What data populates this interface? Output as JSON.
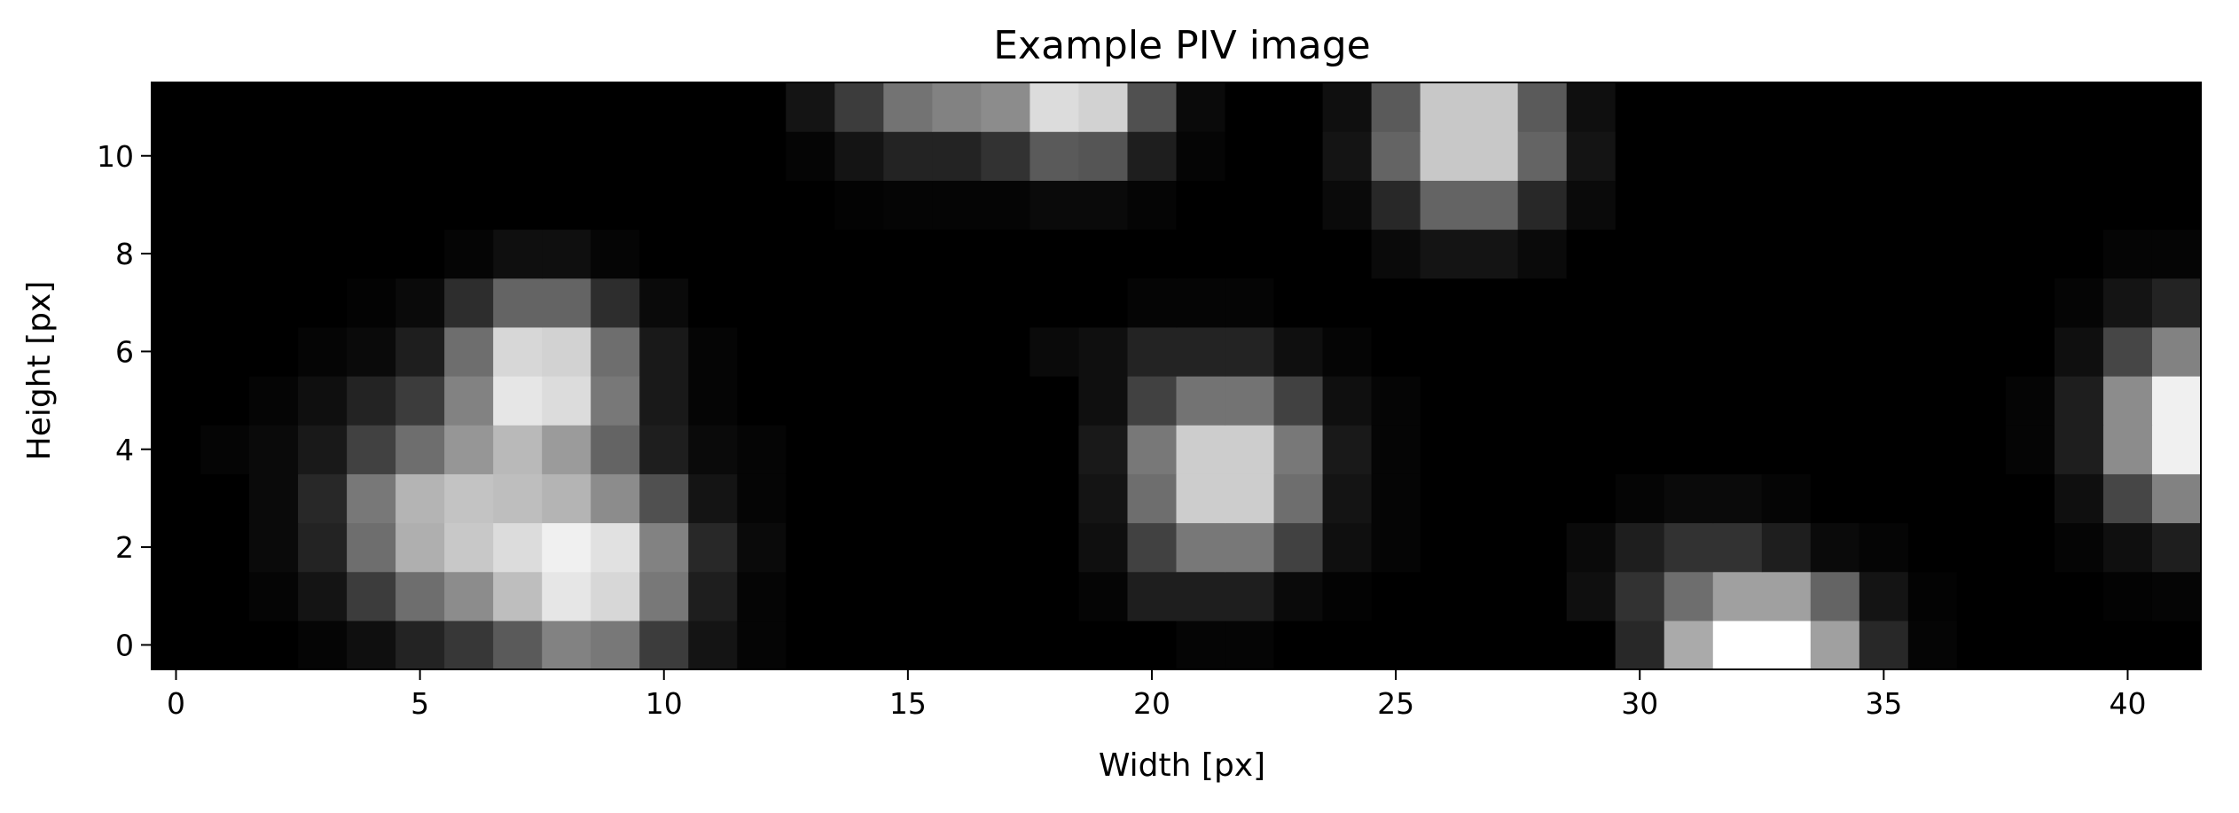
{
  "chart_data": {
    "type": "heatmap",
    "title": "Example PIV image",
    "xlabel": "Width [px]",
    "ylabel": "Height [px]",
    "xlim": [
      -0.5,
      41.5
    ],
    "ylim": [
      -0.5,
      11.5
    ],
    "x_ticks": [
      0,
      5,
      10,
      15,
      20,
      25,
      30,
      35,
      40
    ],
    "y_ticks": [
      0,
      2,
      4,
      6,
      8,
      10
    ],
    "colormap": "gray",
    "origin": "lower",
    "value_range": [
      0,
      255
    ],
    "grid": false,
    "rows_from_y0": [
      [
        0,
        0,
        0,
        5,
        15,
        35,
        55,
        90,
        130,
        120,
        60,
        20,
        5,
        0,
        0,
        0,
        0,
        0,
        0,
        0,
        0,
        5,
        5,
        0,
        0,
        0,
        0,
        0,
        0,
        0,
        40,
        170,
        255,
        255,
        160,
        40,
        5,
        0,
        0,
        0,
        0,
        0
      ],
      [
        0,
        0,
        5,
        20,
        60,
        110,
        140,
        190,
        230,
        215,
        120,
        30,
        5,
        0,
        0,
        0,
        0,
        0,
        0,
        5,
        30,
        30,
        30,
        10,
        3,
        0,
        0,
        0,
        0,
        15,
        50,
        110,
        160,
        160,
        100,
        20,
        3,
        0,
        0,
        0,
        3,
        5
      ],
      [
        0,
        0,
        10,
        35,
        110,
        175,
        200,
        220,
        240,
        225,
        130,
        40,
        10,
        0,
        0,
        0,
        0,
        0,
        0,
        15,
        65,
        120,
        120,
        65,
        15,
        5,
        0,
        0,
        0,
        10,
        30,
        50,
        50,
        30,
        10,
        5,
        0,
        0,
        0,
        5,
        15,
        30
      ],
      [
        0,
        0,
        10,
        40,
        120,
        180,
        195,
        190,
        180,
        140,
        80,
        20,
        5,
        0,
        0,
        0,
        0,
        0,
        0,
        20,
        110,
        205,
        205,
        110,
        20,
        5,
        0,
        0,
        0,
        0,
        5,
        10,
        10,
        5,
        0,
        0,
        0,
        0,
        0,
        15,
        70,
        130
      ],
      [
        0,
        5,
        10,
        25,
        65,
        110,
        150,
        185,
        155,
        100,
        30,
        10,
        5,
        0,
        0,
        0,
        0,
        0,
        0,
        25,
        120,
        205,
        205,
        120,
        25,
        5,
        0,
        0,
        0,
        0,
        0,
        0,
        0,
        0,
        0,
        0,
        0,
        0,
        5,
        30,
        140,
        240
      ],
      [
        0,
        0,
        5,
        15,
        35,
        60,
        130,
        230,
        220,
        120,
        25,
        5,
        0,
        0,
        0,
        0,
        0,
        0,
        0,
        15,
        65,
        115,
        115,
        65,
        15,
        5,
        0,
        0,
        0,
        0,
        0,
        0,
        0,
        0,
        0,
        0,
        0,
        0,
        5,
        30,
        140,
        240
      ],
      [
        0,
        0,
        0,
        5,
        10,
        30,
        110,
        215,
        210,
        110,
        25,
        5,
        0,
        0,
        0,
        0,
        0,
        0,
        10,
        15,
        35,
        35,
        35,
        15,
        5,
        0,
        0,
        0,
        0,
        0,
        0,
        0,
        0,
        0,
        0,
        0,
        0,
        0,
        0,
        15,
        70,
        130
      ],
      [
        0,
        0,
        0,
        0,
        3,
        10,
        45,
        100,
        100,
        45,
        10,
        0,
        0,
        0,
        0,
        0,
        0,
        0,
        0,
        0,
        5,
        5,
        5,
        0,
        0,
        0,
        0,
        0,
        0,
        0,
        0,
        0,
        0,
        0,
        0,
        0,
        0,
        0,
        0,
        5,
        20,
        35
      ],
      [
        0,
        0,
        0,
        0,
        0,
        0,
        5,
        15,
        15,
        5,
        0,
        0,
        0,
        0,
        0,
        0,
        0,
        0,
        0,
        0,
        0,
        0,
        0,
        0,
        0,
        10,
        20,
        20,
        10,
        0,
        0,
        0,
        0,
        0,
        0,
        0,
        0,
        0,
        0,
        0,
        5,
        5
      ],
      [
        0,
        0,
        0,
        0,
        0,
        0,
        0,
        0,
        0,
        0,
        0,
        0,
        0,
        0,
        3,
        5,
        5,
        5,
        10,
        10,
        5,
        0,
        0,
        0,
        10,
        40,
        100,
        100,
        40,
        10,
        0,
        0,
        0,
        0,
        0,
        0,
        0,
        0,
        0,
        0,
        0,
        0
      ],
      [
        0,
        0,
        0,
        0,
        0,
        0,
        0,
        0,
        0,
        0,
        0,
        0,
        0,
        5,
        20,
        35,
        35,
        50,
        90,
        85,
        30,
        5,
        0,
        0,
        20,
        100,
        200,
        200,
        100,
        20,
        0,
        0,
        0,
        0,
        0,
        0,
        0,
        0,
        0,
        0,
        0,
        0
      ],
      [
        0,
        0,
        0,
        0,
        0,
        0,
        0,
        0,
        0,
        0,
        0,
        0,
        0,
        20,
        60,
        115,
        130,
        140,
        220,
        210,
        80,
        10,
        0,
        0,
        15,
        90,
        200,
        200,
        90,
        15,
        0,
        0,
        0,
        0,
        0,
        0,
        0,
        0,
        0,
        0,
        0,
        0
      ]
    ]
  }
}
